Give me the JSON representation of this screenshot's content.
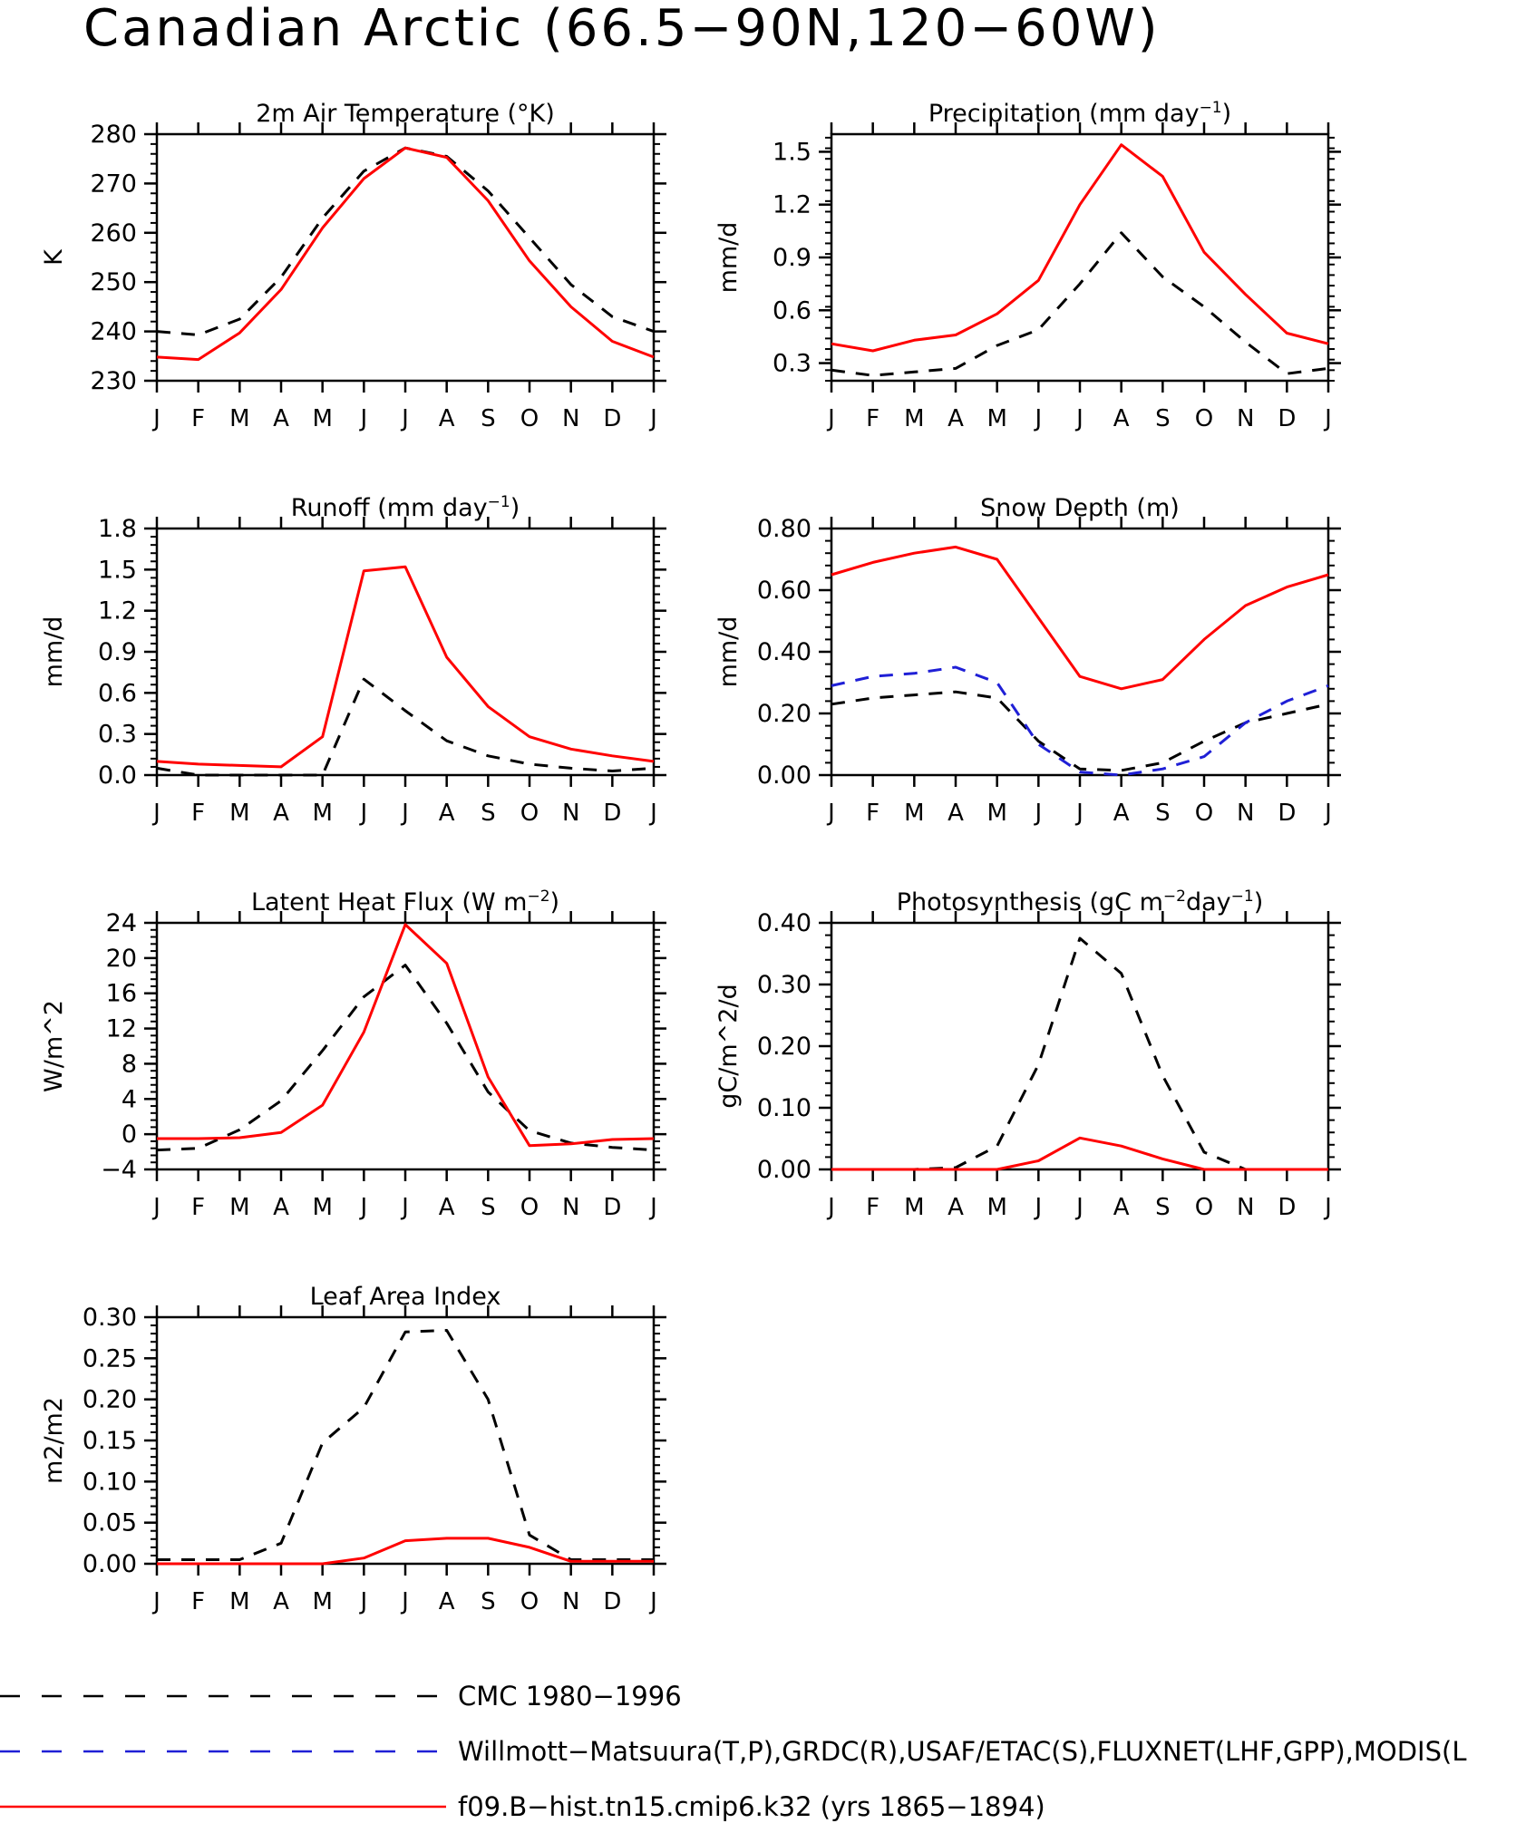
{
  "figure_title": "Canadian Arctic (66.5−90N,120−60W)",
  "months": [
    "J",
    "F",
    "M",
    "A",
    "M",
    "J",
    "J",
    "A",
    "S",
    "O",
    "N",
    "D",
    "J"
  ],
  "colors": {
    "obs1": "#000000",
    "obs2": "#1f1fd6",
    "model": "#ff0000"
  },
  "legend": [
    {
      "key": "obs1",
      "label": "CMC 1980−1996",
      "dash": "long-dash",
      "color": "#000000"
    },
    {
      "key": "obs2",
      "label": "Willmott−Matsuura(T,P),GRDC(R),USAF/ETAC(S),FLUXNET(LHF,GPP),MODIS(L",
      "dash": "long-dash",
      "color": "#1f1fd6"
    },
    {
      "key": "model",
      "label": "f09.B−hist.tn15.cmip6.k32 (yrs 1865−1894)",
      "dash": "solid",
      "color": "#ff0000"
    }
  ],
  "chart_data": [
    {
      "type": "line",
      "title": "2m Air Temperature (°K)",
      "ylabel": "K",
      "ylim": [
        230,
        280
      ],
      "yticks": [
        230,
        240,
        250,
        260,
        270,
        280
      ],
      "ytick_labels": [
        "230",
        "240",
        "250",
        "260",
        "270",
        "280"
      ],
      "x": [
        "J",
        "F",
        "M",
        "A",
        "M",
        "J",
        "J",
        "A",
        "S",
        "O",
        "N",
        "D",
        "J"
      ],
      "series": [
        {
          "key": "obs1",
          "values": [
            240,
            239.3,
            242.5,
            251,
            263,
            272.5,
            277.2,
            275.5,
            268.5,
            259,
            249.5,
            243,
            240
          ]
        },
        {
          "key": "model",
          "values": [
            234.8,
            234.3,
            239.7,
            248.5,
            261,
            271,
            277.2,
            275.3,
            266.5,
            254.3,
            245,
            238,
            234.8
          ]
        }
      ]
    },
    {
      "type": "line",
      "title": "Precipitation (mm day",
      "title_sup": "−1",
      "title_end": ")",
      "ylabel": "mm/d",
      "ylim": [
        0.2,
        1.6
      ],
      "yticks": [
        0.3,
        0.6,
        0.9,
        1.2,
        1.5
      ],
      "ytick_labels": [
        "0.3",
        "0.6",
        "0.9",
        "1.2",
        "1.5"
      ],
      "x": [
        "J",
        "F",
        "M",
        "A",
        "M",
        "J",
        "J",
        "A",
        "S",
        "O",
        "N",
        "D",
        "J"
      ],
      "series": [
        {
          "key": "obs1",
          "values": [
            0.26,
            0.23,
            0.25,
            0.27,
            0.4,
            0.49,
            0.75,
            1.04,
            0.79,
            0.62,
            0.42,
            0.24,
            0.27
          ]
        },
        {
          "key": "model",
          "values": [
            0.41,
            0.37,
            0.43,
            0.46,
            0.58,
            0.77,
            1.2,
            1.54,
            1.36,
            0.93,
            0.69,
            0.47,
            0.41
          ]
        }
      ]
    },
    {
      "type": "line",
      "title": "Runoff (mm day",
      "title_sup": "−1",
      "title_end": ")",
      "ylabel": "mm/d",
      "ylim": [
        0,
        1.8
      ],
      "yticks": [
        0,
        0.3,
        0.6,
        0.9,
        1.2,
        1.5,
        1.8
      ],
      "ytick_labels": [
        "0.0",
        "0.3",
        "0.6",
        "0.9",
        "1.2",
        "1.5",
        "1.8"
      ],
      "x": [
        "J",
        "F",
        "M",
        "A",
        "M",
        "J",
        "J",
        "A",
        "S",
        "O",
        "N",
        "D",
        "J"
      ],
      "series": [
        {
          "key": "obs1",
          "values": [
            0.05,
            0.0,
            0.0,
            0.0,
            0.0,
            0.7,
            0.47,
            0.25,
            0.14,
            0.08,
            0.05,
            0.03,
            0.05
          ]
        },
        {
          "key": "model",
          "values": [
            0.1,
            0.08,
            0.07,
            0.06,
            0.28,
            1.49,
            1.52,
            0.86,
            0.5,
            0.28,
            0.19,
            0.14,
            0.1
          ]
        }
      ]
    },
    {
      "type": "line",
      "title": "Snow Depth (m)",
      "ylabel": "mm/d",
      "ylim": [
        0,
        0.8
      ],
      "yticks": [
        0,
        0.2,
        0.4,
        0.6,
        0.8
      ],
      "ytick_labels": [
        "0.00",
        "0.20",
        "0.40",
        "0.60",
        "0.80"
      ],
      "x": [
        "J",
        "F",
        "M",
        "A",
        "M",
        "J",
        "J",
        "A",
        "S",
        "O",
        "N",
        "D",
        "J"
      ],
      "series": [
        {
          "key": "obs1",
          "values": [
            0.23,
            0.25,
            0.26,
            0.27,
            0.25,
            0.11,
            0.02,
            0.015,
            0.04,
            0.11,
            0.17,
            0.2,
            0.23
          ]
        },
        {
          "key": "obs2",
          "values": [
            0.29,
            0.32,
            0.33,
            0.35,
            0.3,
            0.1,
            0.01,
            0.0,
            0.02,
            0.06,
            0.17,
            0.24,
            0.29
          ]
        },
        {
          "key": "model",
          "values": [
            0.65,
            0.69,
            0.72,
            0.74,
            0.7,
            0.51,
            0.32,
            0.28,
            0.31,
            0.44,
            0.55,
            0.61,
            0.65
          ]
        }
      ]
    },
    {
      "type": "line",
      "title": "Latent Heat Flux (W m",
      "title_sup": "−2",
      "title_end": ")",
      "ylabel": "W/m^2",
      "ylim": [
        -4,
        24
      ],
      "yticks": [
        -4,
        0,
        4,
        8,
        12,
        16,
        20,
        24
      ],
      "ytick_labels": [
        "−4",
        "0",
        "4",
        "8",
        "12",
        "16",
        "20",
        "24"
      ],
      "x": [
        "J",
        "F",
        "M",
        "A",
        "M",
        "J",
        "J",
        "A",
        "S",
        "O",
        "N",
        "D",
        "J"
      ],
      "series": [
        {
          "key": "obs1",
          "values": [
            -1.8,
            -1.6,
            0.5,
            3.8,
            9.5,
            15.6,
            19.2,
            12.6,
            4.8,
            0.4,
            -1.0,
            -1.5,
            -1.8
          ]
        },
        {
          "key": "model",
          "values": [
            -0.5,
            -0.5,
            -0.4,
            0.2,
            3.3,
            11.6,
            23.8,
            19.4,
            6.5,
            -1.3,
            -1.1,
            -0.6,
            -0.5
          ]
        }
      ]
    },
    {
      "type": "line",
      "title": "Photosynthesis (gC m",
      "title_sup": "−2",
      "title_mid": "day",
      "title_sup2": "−1",
      "title_end": ")",
      "ylabel": "gC/m^2/d",
      "ylim": [
        0,
        0.4
      ],
      "yticks": [
        0,
        0.1,
        0.2,
        0.3,
        0.4
      ],
      "ytick_labels": [
        "0.00",
        "0.10",
        "0.20",
        "0.30",
        "0.40"
      ],
      "x": [
        "J",
        "F",
        "M",
        "A",
        "M",
        "J",
        "J",
        "A",
        "S",
        "O",
        "N",
        "D",
        "J"
      ],
      "series": [
        {
          "key": "obs1",
          "values": [
            0.0,
            0.0,
            0.0,
            0.003,
            0.038,
            0.17,
            0.375,
            0.318,
            0.152,
            0.028,
            0.0,
            0.0,
            0.0
          ]
        },
        {
          "key": "model",
          "values": [
            0.0,
            0.0,
            0.0,
            0.0,
            0.0,
            0.014,
            0.051,
            0.038,
            0.017,
            0.0,
            0.0,
            0.0,
            0.0
          ]
        }
      ]
    },
    {
      "type": "line",
      "title": "Leaf Area Index",
      "ylabel": "m2/m2",
      "ylim": [
        0,
        0.3
      ],
      "yticks": [
        0,
        0.05,
        0.1,
        0.15,
        0.2,
        0.25,
        0.3
      ],
      "ytick_labels": [
        "0.00",
        "0.05",
        "0.10",
        "0.15",
        "0.20",
        "0.25",
        "0.30"
      ],
      "x": [
        "J",
        "F",
        "M",
        "A",
        "M",
        "J",
        "J",
        "A",
        "S",
        "O",
        "N",
        "D",
        "J"
      ],
      "series": [
        {
          "key": "obs1",
          "values": [
            0.005,
            0.005,
            0.005,
            0.025,
            0.147,
            0.19,
            0.282,
            0.284,
            0.2,
            0.035,
            0.005,
            0.005,
            0.005
          ]
        },
        {
          "key": "model",
          "values": [
            0.0,
            0.0,
            0.0,
            0.0,
            0.0,
            0.007,
            0.028,
            0.031,
            0.031,
            0.02,
            0.003,
            0.003,
            0.003
          ]
        }
      ]
    }
  ]
}
